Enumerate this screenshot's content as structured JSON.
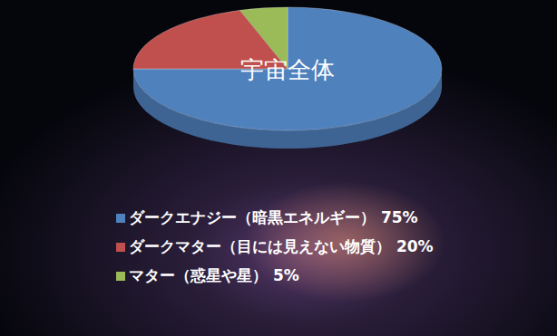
{
  "chart_data": {
    "type": "pie",
    "title": "宇宙全体",
    "categories": [
      "ダークエナジー（暗黒エネルギー） 75%",
      "ダークマター（目には見えない物質） 20%",
      "マター（惑星や星） 5%"
    ],
    "values": [
      75,
      20,
      5
    ],
    "colors": [
      "#4f81bd",
      "#c0504d",
      "#9bbb59"
    ],
    "legend": "bottom"
  }
}
